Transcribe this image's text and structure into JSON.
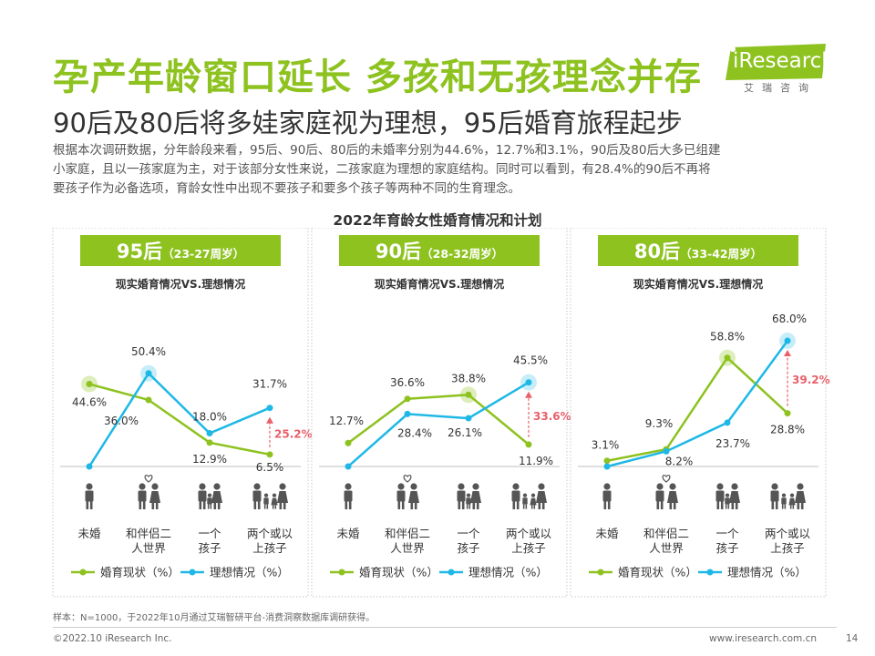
{
  "header": {
    "title": "孕产年龄窗口延长 多孩和无孩理念并存",
    "subtitle": "90后及80后将多娃家庭视为理想，95后婚育旅程起步",
    "intro": [
      "根据本次调研数据，分年龄段来看，95后、90后、80后的未婚率分别为44.6%，12.7%和3.1%，90后及80后大多已组建",
      "小家庭，且以一孩家庭为主，对于该部分女性来说，二孩家庭为理想的家庭结构。同时可以看到，有28.4%的90后不再将",
      "要孩子作为必备选项，育龄女性中出现不要孩子和要多个孩子等两种不同的生育理念。"
    ]
  },
  "logo": {
    "text": "iResearch",
    "cn": "艾瑞咨询",
    "color": "#8dc21f"
  },
  "chart_data": {
    "type": "line",
    "title": "2022年育龄女性婚育情况和计划",
    "subtitle": "现实婚育情况VS.理想情况",
    "categories": [
      "未婚",
      "和伴侣二人世界",
      "一个孩子",
      "两个或以上孩子"
    ],
    "category_labels": [
      [
        "未婚"
      ],
      [
        "和伴侣二",
        "人世界"
      ],
      [
        "一个",
        "孩子"
      ],
      [
        "两个或以",
        "上孩子"
      ]
    ],
    "legend": [
      "婚育现状（%）",
      "理想情况（%）"
    ],
    "colors": {
      "actual": "#8dc21f",
      "ideal": "#1eb8e6",
      "gap": "#e8606a",
      "header": "#8dc21f"
    },
    "panels": [
      {
        "name": "95后",
        "range": "（23-27周岁）",
        "series": [
          {
            "name": "婚育现状（%）",
            "values": [
              44.6,
              36.0,
              12.9,
              6.5
            ]
          },
          {
            "name": "理想情况（%）",
            "values": [
              0,
              50.4,
              18.0,
              31.7
            ]
          }
        ],
        "labels_actual": [
          "44.6%",
          "36.0%",
          "12.9%",
          "6.5%"
        ],
        "labels_ideal": [
          "",
          "50.4%",
          "18.0%",
          "31.7%"
        ],
        "gap_label": "25.2%"
      },
      {
        "name": "90后",
        "range": "（28-32周岁）",
        "series": [
          {
            "name": "婚育现状（%）",
            "values": [
              12.7,
              36.6,
              38.8,
              11.9
            ]
          },
          {
            "name": "理想情况（%）",
            "values": [
              0,
              28.4,
              26.1,
              45.5
            ]
          }
        ],
        "labels_actual": [
          "12.7%",
          "36.6%",
          "38.8%",
          "11.9%"
        ],
        "labels_ideal": [
          "",
          "28.4%",
          "26.1%",
          "45.5%"
        ],
        "gap_label": "33.6%"
      },
      {
        "name": "80后",
        "range": "（33-42周岁）",
        "series": [
          {
            "name": "婚育现状（%）",
            "values": [
              3.1,
              9.3,
              58.8,
              28.8
            ]
          },
          {
            "name": "理想情况（%）",
            "values": [
              0,
              8.2,
              23.7,
              68.0
            ]
          }
        ],
        "labels_actual": [
          "3.1%",
          "9.3%",
          "58.8%",
          "28.8%"
        ],
        "labels_ideal": [
          "",
          "8.2%",
          "23.7%",
          "68.0%"
        ],
        "gap_label": "39.2%"
      }
    ]
  },
  "footer": {
    "note": "样本：N=1000，于2022年10月通过艾瑞智研平台-消费洞察数据库调研获得。",
    "copyright": "©2022.10 iResearch Inc.",
    "site": "www.iresearch.com.cn",
    "page": "14"
  }
}
